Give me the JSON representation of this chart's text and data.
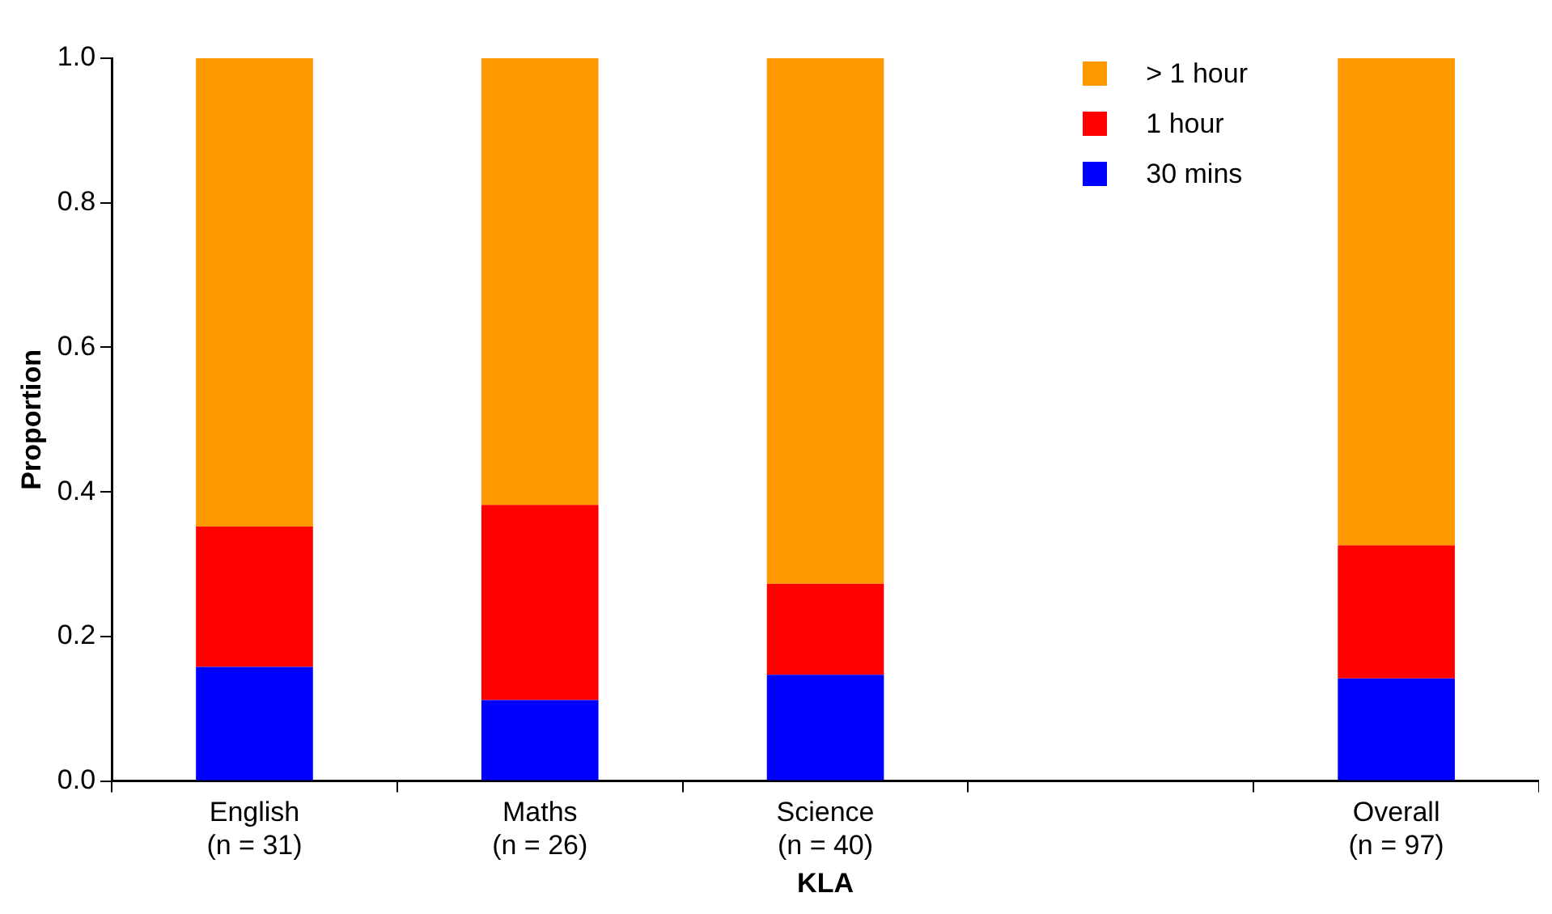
{
  "chart_data": {
    "type": "bar",
    "stacked": true,
    "xlabel": "KLA",
    "ylabel": "Proportion",
    "categories": [
      "English\n(n = 31)",
      "Maths\n(n = 26)",
      "Science\n(n = 40)",
      null,
      "Overall\n(n = 97)"
    ],
    "series": [
      {
        "name": "30 mins",
        "color": "#0000ff",
        "values": [
          0.158,
          0.112,
          0.147,
          null,
          0.142
        ]
      },
      {
        "name": "1 hour",
        "color": "#ff0000",
        "values": [
          0.194,
          0.27,
          0.126,
          null,
          0.184
        ]
      },
      {
        "name": "> 1 hour",
        "color": "#ff9900",
        "values": [
          0.648,
          0.618,
          0.727,
          null,
          0.674
        ]
      }
    ],
    "ylim": [
      0,
      1
    ],
    "yticks": [
      {
        "value": 0,
        "label": "0.0"
      },
      {
        "value": 0.2,
        "label": "0.2"
      },
      {
        "value": 0.4,
        "label": "0.4"
      },
      {
        "value": 0.6,
        "label": "0.6"
      },
      {
        "value": 0.8,
        "label": "0.8"
      },
      {
        "value": 1,
        "label": "1.0"
      }
    ],
    "grid": false,
    "legend": "top right"
  }
}
